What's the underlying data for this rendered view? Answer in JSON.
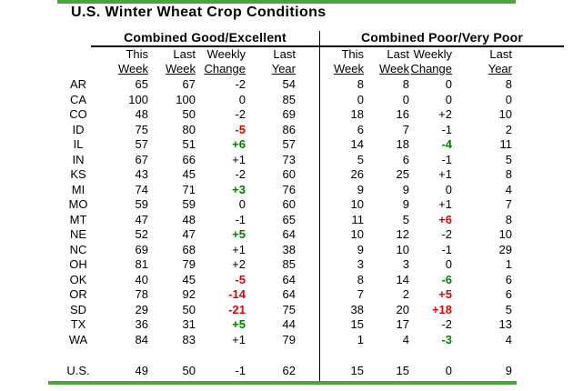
{
  "title": "U.S. Winter Wheat Crop Conditions",
  "colors": {
    "accent": "#4CA339",
    "pos": "#008000",
    "neg": "#E80000"
  },
  "chart_data": {
    "type": "table",
    "title": "U.S. Winter Wheat Crop Conditions",
    "sections": [
      {
        "title": "Combined Good/Excellent",
        "headers": [
          [
            "This",
            "Week"
          ],
          [
            "Last",
            "Week"
          ],
          [
            "Weekly",
            "Change"
          ],
          [
            "Last",
            "Year"
          ]
        ]
      },
      {
        "title": "Combined Poor/Very Poor",
        "headers": [
          [
            "This",
            "Week"
          ],
          [
            "Last",
            "Week"
          ],
          [
            "Weekly",
            "Change"
          ],
          [
            "Last",
            "Year"
          ]
        ]
      }
    ],
    "rows": [
      {
        "state": "AR",
        "good": {
          "this": 65,
          "last": 67,
          "change": "-2",
          "year": 54,
          "hl": "none"
        },
        "poor": {
          "this": 8,
          "last": 8,
          "change": "0",
          "year": 8,
          "hl": "none"
        }
      },
      {
        "state": "CA",
        "good": {
          "this": 100,
          "last": 100,
          "change": "0",
          "year": 85,
          "hl": "none"
        },
        "poor": {
          "this": 0,
          "last": 0,
          "change": "0",
          "year": 0,
          "hl": "none"
        }
      },
      {
        "state": "CO",
        "good": {
          "this": 48,
          "last": 50,
          "change": "-2",
          "year": 69,
          "hl": "none"
        },
        "poor": {
          "this": 18,
          "last": 16,
          "change": "+2",
          "year": 10,
          "hl": "none"
        }
      },
      {
        "state": "ID",
        "good": {
          "this": 75,
          "last": 80,
          "change": "-5",
          "year": 86,
          "hl": "red"
        },
        "poor": {
          "this": 6,
          "last": 7,
          "change": "-1",
          "year": 2,
          "hl": "none"
        }
      },
      {
        "state": "IL",
        "good": {
          "this": 57,
          "last": 51,
          "change": "+6",
          "year": 57,
          "hl": "green"
        },
        "poor": {
          "this": 14,
          "last": 18,
          "change": "-4",
          "year": 11,
          "hl": "green"
        }
      },
      {
        "state": "IN",
        "good": {
          "this": 67,
          "last": 66,
          "change": "+1",
          "year": 73,
          "hl": "none"
        },
        "poor": {
          "this": 5,
          "last": 6,
          "change": "-1",
          "year": 5,
          "hl": "none"
        }
      },
      {
        "state": "KS",
        "good": {
          "this": 43,
          "last": 45,
          "change": "-2",
          "year": 60,
          "hl": "none"
        },
        "poor": {
          "this": 26,
          "last": 25,
          "change": "+1",
          "year": 8,
          "hl": "none"
        }
      },
      {
        "state": "MI",
        "good": {
          "this": 74,
          "last": 71,
          "change": "+3",
          "year": 76,
          "hl": "green"
        },
        "poor": {
          "this": 9,
          "last": 9,
          "change": "0",
          "year": 4,
          "hl": "none"
        }
      },
      {
        "state": "MO",
        "good": {
          "this": 59,
          "last": 59,
          "change": "0",
          "year": 60,
          "hl": "none"
        },
        "poor": {
          "this": 10,
          "last": 9,
          "change": "+1",
          "year": 7,
          "hl": "none"
        }
      },
      {
        "state": "MT",
        "good": {
          "this": 47,
          "last": 48,
          "change": "-1",
          "year": 65,
          "hl": "none"
        },
        "poor": {
          "this": 11,
          "last": 5,
          "change": "+6",
          "year": 8,
          "hl": "red"
        }
      },
      {
        "state": "NE",
        "good": {
          "this": 52,
          "last": 47,
          "change": "+5",
          "year": 64,
          "hl": "green"
        },
        "poor": {
          "this": 10,
          "last": 12,
          "change": "-2",
          "year": 10,
          "hl": "none"
        }
      },
      {
        "state": "NC",
        "good": {
          "this": 69,
          "last": 68,
          "change": "+1",
          "year": 38,
          "hl": "none"
        },
        "poor": {
          "this": 9,
          "last": 10,
          "change": "-1",
          "year": 29,
          "hl": "none"
        }
      },
      {
        "state": "OH",
        "good": {
          "this": 81,
          "last": 79,
          "change": "+2",
          "year": 85,
          "hl": "none"
        },
        "poor": {
          "this": 3,
          "last": 3,
          "change": "0",
          "year": 1,
          "hl": "none"
        }
      },
      {
        "state": "OK",
        "good": {
          "this": 40,
          "last": 45,
          "change": "-5",
          "year": 64,
          "hl": "red"
        },
        "poor": {
          "this": 8,
          "last": 14,
          "change": "-6",
          "year": 6,
          "hl": "green"
        }
      },
      {
        "state": "OR",
        "good": {
          "this": 78,
          "last": 92,
          "change": "-14",
          "year": 64,
          "hl": "red"
        },
        "poor": {
          "this": 7,
          "last": 2,
          "change": "+5",
          "year": 6,
          "hl": "red"
        }
      },
      {
        "state": "SD",
        "good": {
          "this": 29,
          "last": 50,
          "change": "-21",
          "year": 75,
          "hl": "red"
        },
        "poor": {
          "this": 38,
          "last": 20,
          "change": "+18",
          "year": 5,
          "hl": "red"
        }
      },
      {
        "state": "TX",
        "good": {
          "this": 36,
          "last": 31,
          "change": "+5",
          "year": 44,
          "hl": "green"
        },
        "poor": {
          "this": 15,
          "last": 17,
          "change": "-2",
          "year": 13,
          "hl": "none"
        }
      },
      {
        "state": "WA",
        "good": {
          "this": 84,
          "last": 83,
          "change": "+1",
          "year": 79,
          "hl": "none"
        },
        "poor": {
          "this": 1,
          "last": 4,
          "change": "-3",
          "year": 4,
          "hl": "green"
        }
      },
      {
        "state": "U.S.",
        "us": true,
        "good": {
          "this": 49,
          "last": 50,
          "change": "-1",
          "year": 62,
          "hl": "none"
        },
        "poor": {
          "this": 15,
          "last": 15,
          "change": "0",
          "year": 9,
          "hl": "none"
        }
      }
    ]
  }
}
